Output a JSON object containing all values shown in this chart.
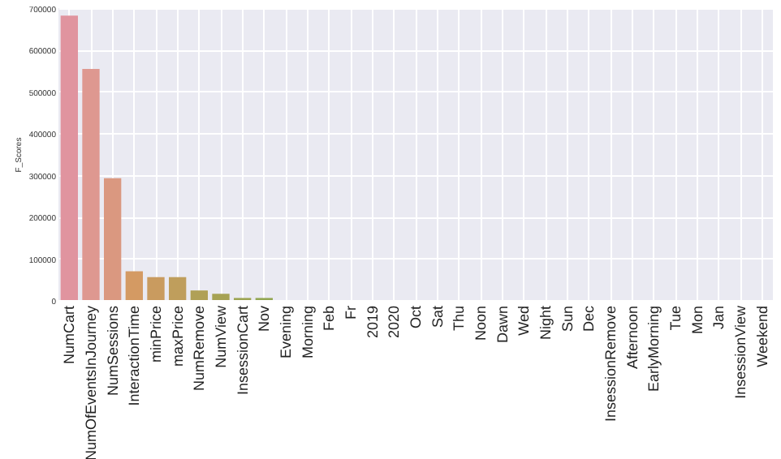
{
  "chart_data": {
    "type": "bar",
    "ylabel": "F_Scores",
    "categories": [
      "NumCart",
      "NumOfEventsInJourney",
      "NumSessions",
      "InteractionTime",
      "minPrice",
      "maxPrice",
      "NumRemove",
      "NumView",
      "InsessionCart",
      "Nov",
      "Evening",
      "Morning",
      "Feb",
      "Fr",
      "2019",
      "2020",
      "Oct",
      "Sat",
      "Thu",
      "Noon",
      "Dawn",
      "Wed",
      "Night",
      "Sun",
      "Dec",
      "InsessionRemove",
      "Afternoon",
      "EarlyMorning",
      "Tue",
      "Mon",
      "Jan",
      "InsessionView",
      "Weekend"
    ],
    "values": [
      682000,
      554000,
      292000,
      69000,
      55000,
      55000,
      23000,
      15000,
      5000,
      5000,
      0,
      0,
      0,
      0,
      0,
      0,
      0,
      0,
      0,
      0,
      0,
      0,
      0,
      0,
      0,
      0,
      0,
      0,
      0,
      0,
      0,
      0,
      0
    ],
    "colors": [
      "#e0949f",
      "#de9890",
      "#da9880",
      "#d49a63",
      "#c99b5f",
      "#bf9e5c",
      "#b0a057",
      "#a6a254",
      "#9ca452",
      "#92a651",
      "#86a952",
      "#7aab5a",
      "#6dad66",
      "#63ae74",
      "#5eae82",
      "#5aae8f",
      "#5aad9a",
      "#5bada4",
      "#5dacae",
      "#60abb8",
      "#64aac3",
      "#6aa8cf",
      "#74a5da",
      "#82a1e2",
      "#929de6",
      "#a29ae8",
      "#b296e6",
      "#c193e0",
      "#cd91d6",
      "#d790ca",
      "#dd90bd",
      "#e091b0",
      "#e192a6"
    ],
    "ylim": [
      0,
      700000
    ],
    "yticks": [
      0,
      100000,
      200000,
      300000,
      400000,
      500000,
      600000,
      700000
    ],
    "grid": true
  }
}
